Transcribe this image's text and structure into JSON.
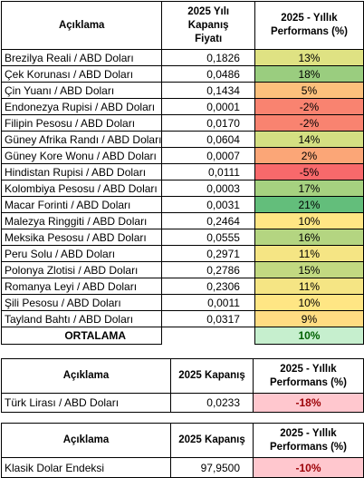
{
  "main_table": {
    "headers": {
      "name": "Açıklama",
      "price": "2025 Yılı Kapanış Fiyatı",
      "perf": "2025 - Yıllık Performans (%)"
    },
    "rows": [
      {
        "name": "Brezilya Reali / ABD Doları",
        "price": "0,1826",
        "perf": "13%",
        "color": "#dfe283"
      },
      {
        "name": "Çek Korunası / ABD Doları",
        "price": "0,0486",
        "perf": "18%",
        "color": "#9acd7f"
      },
      {
        "name": "Çin Yuanı / ABD Doları",
        "price": "0,1434",
        "perf": "5%",
        "color": "#fcc07c"
      },
      {
        "name": "Endonezya Rupisi / ABD Doları",
        "price": "0,0001",
        "perf": "-2%",
        "color": "#f98370"
      },
      {
        "name": "Filipin Pesosu / ABD Doları",
        "price": "0,0170",
        "perf": "-2%",
        "color": "#f98370"
      },
      {
        "name": "Güney Afrika Randı / ABD Doları",
        "price": "0,0604",
        "perf": "14%",
        "color": "#d4df82"
      },
      {
        "name": "Güney Kore Wonu / ABD Doları",
        "price": "0,0007",
        "perf": "2%",
        "color": "#fba677"
      },
      {
        "name": "Hindistan Rupisi / ABD Doları",
        "price": "0,0111",
        "perf": "-5%",
        "color": "#f8696b"
      },
      {
        "name": "Kolombiya Pesosu / ABD Doları",
        "price": "0,0003",
        "perf": "17%",
        "color": "#a6d180"
      },
      {
        "name": "Macar Forinti / ABD Doları",
        "price": "0,0031",
        "perf": "21%",
        "color": "#63be7b"
      },
      {
        "name": "Malezya Ringgiti / ABD Doları",
        "price": "0,2464",
        "perf": "10%",
        "color": "#ffe684"
      },
      {
        "name": "Meksika Pesosu / ABD Doları",
        "price": "0,0555",
        "perf": "16%",
        "color": "#b4d581"
      },
      {
        "name": "Peru Solu / ABD Doları",
        "price": "0,2971",
        "perf": "11%",
        "color": "#f5e584"
      },
      {
        "name": "Polonya Zlotisi / ABD Doları",
        "price": "0,2786",
        "perf": "15%",
        "color": "#c2d981"
      },
      {
        "name": "Romanya Leyi / ABD Doları",
        "price": "0,2306",
        "perf": "11%",
        "color": "#f5e584"
      },
      {
        "name": "Şili Pesosu / ABD Doları",
        "price": "0,0011",
        "perf": "10%",
        "color": "#ffe684"
      },
      {
        "name": "Tayland Bahtı / ABD Doları",
        "price": "0,0317",
        "perf": "9%",
        "color": "#ffdc82"
      }
    ],
    "average": {
      "label": "ORTALAMA",
      "value": "10%",
      "color": "#c6efce",
      "text_color": "#006100"
    }
  },
  "try_table": {
    "headers": {
      "name": "Açıklama",
      "price": "2025 Kapanış",
      "perf": "2025 - Yıllık Performans (%)"
    },
    "row": {
      "name": "Türk Lirası / ABD Doları",
      "price": "0,0233",
      "perf": "-18%",
      "color": "#ffc7ce",
      "text_color": "#9c0006"
    }
  },
  "dxy_table": {
    "headers": {
      "name": "Açıklama",
      "price": "2025 Kapanış",
      "perf": "2025 - Yıllık Performans (%)"
    },
    "row": {
      "name": "Klasik Dolar Endeksi",
      "price": "97,9500",
      "perf": "-10%",
      "color": "#ffc7ce",
      "text_color": "#9c0006"
    }
  }
}
